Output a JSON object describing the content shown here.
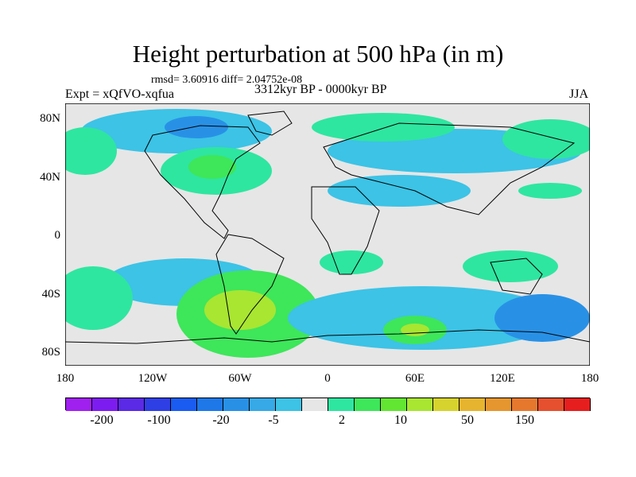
{
  "title": "Height perturbation at 500 hPa (in m)",
  "stats": "rmsd= 3.60916 diff= 2.04752e-08",
  "expt": "Expt = xQfVO-xqfua",
  "period": "3312kyr BP - 0000kyr BP",
  "season": "JJA",
  "lat_ticks": [
    "80N",
    "40N",
    "0",
    "40S",
    "80S"
  ],
  "lon_ticks": [
    "180",
    "120W",
    "60W",
    "0",
    "60E",
    "120E",
    "180"
  ],
  "colorbar": {
    "colors": [
      "#a020f0",
      "#7d1cf0",
      "#5a2ae6",
      "#2f3fe6",
      "#1a5cf2",
      "#1e78e8",
      "#2891e6",
      "#36a9e6",
      "#3cc3e6",
      "#e6e6e6",
      "#2ee6a0",
      "#3ee65a",
      "#62e632",
      "#a8e632",
      "#d6d32e",
      "#e6b42e",
      "#e6962e",
      "#e6782e",
      "#e6502e",
      "#e61e1e"
    ],
    "labels": [
      "-200",
      "-100",
      "-20",
      "-5",
      "2",
      "10",
      "50",
      "150"
    ]
  },
  "fields": {
    "background": "#e6e6e6",
    "coast": "#000000"
  }
}
